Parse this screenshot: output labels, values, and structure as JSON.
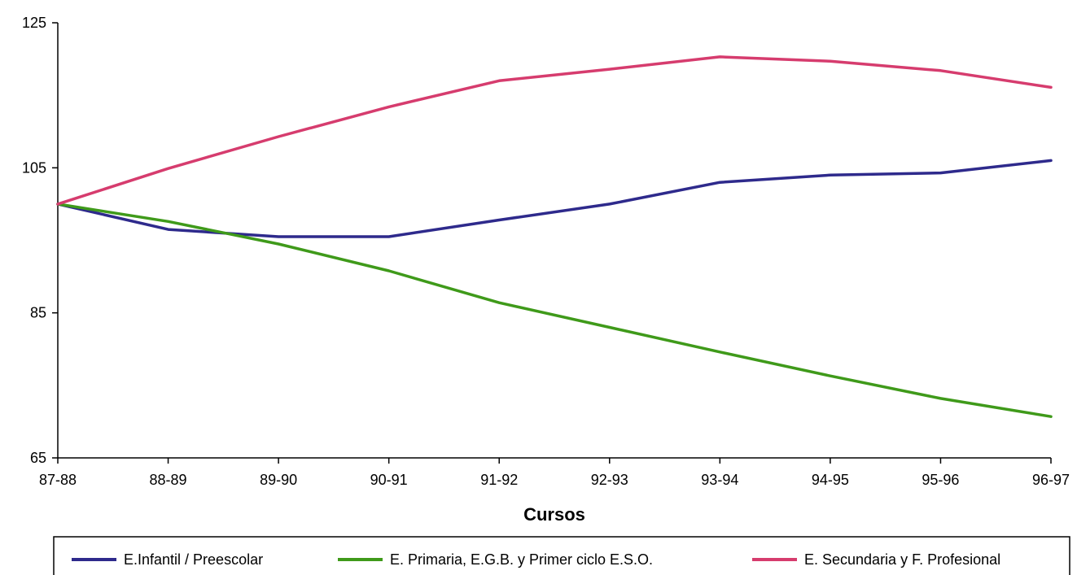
{
  "chart_data": {
    "type": "line",
    "xlabel": "Cursos",
    "ylabel": "",
    "ylim": [
      65,
      125
    ],
    "yticks": [
      65,
      85,
      105,
      125
    ],
    "grid": false,
    "legend_position": "bottom",
    "categories": [
      "87-88",
      "88-89",
      "89-90",
      "90-91",
      "91-92",
      "92-93",
      "93-94",
      "94-95",
      "95-96",
      "96-97"
    ],
    "series": [
      {
        "name": "E.Infantil / Preescolar",
        "color": "#2e2a8c",
        "values": [
          100,
          96.5,
          95.5,
          95.5,
          97.8,
          100,
          103,
          104,
          104.3,
          106
        ]
      },
      {
        "name": "E. Primaria, E.G.B. y Primer ciclo E.S.O.",
        "color": "#3f9a1a",
        "values": [
          100,
          97.6,
          94.5,
          90.8,
          86.4,
          83,
          79.6,
          76.3,
          73.2,
          70.7
        ]
      },
      {
        "name": "E. Secundaria y F. Profesional",
        "color": "#d63c6e",
        "values": [
          100,
          104.9,
          109.3,
          113.4,
          117,
          118.6,
          120.3,
          119.7,
          118.4,
          116.1
        ]
      }
    ]
  }
}
